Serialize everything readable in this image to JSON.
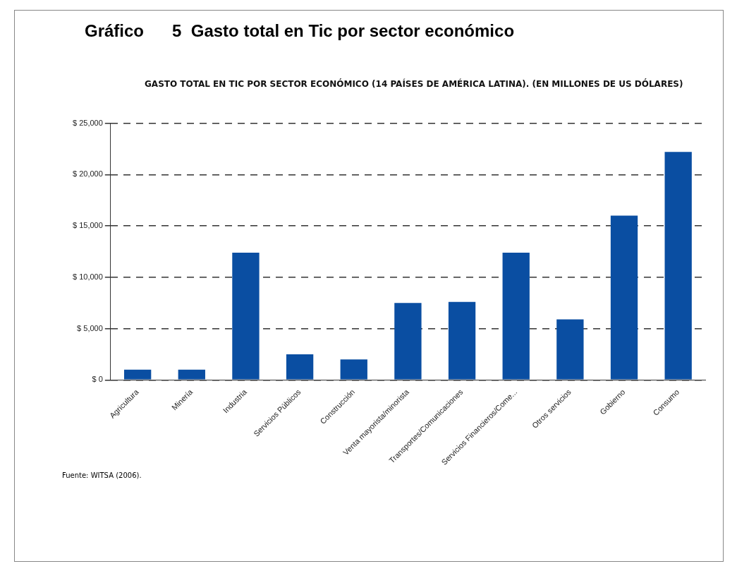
{
  "chart_data": {
    "type": "bar",
    "title": "Gráfico      5  Gasto total en Tic por sector económico",
    "subtitle": "GASTO TOTAL EN TIC POR SECTOR ECONÓMICO (14 PAÍSES DE AMÉRICA LATINA). (EN MILLONES DE US DÓLARES)",
    "categories": [
      "Agricultura",
      "Minería",
      "Industria",
      "Servicios Públicos",
      "Construcción",
      "Venta mayorista/minorista",
      "Transportes/Comunicaciones",
      "Servicios Financieros/Come...",
      "Otros servicios",
      "Gobierno",
      "Consumo"
    ],
    "values": [
      1000,
      1000,
      12400,
      2500,
      2000,
      7500,
      7600,
      12400,
      5900,
      16000,
      22200
    ],
    "color": "#0a4ea2",
    "ylim": [
      0,
      25000
    ],
    "yticks": [
      {
        "value": 0,
        "label": "$ 0"
      },
      {
        "value": 5000,
        "label": "$ 5,000"
      },
      {
        "value": 10000,
        "label": "$ 10,000"
      },
      {
        "value": 15000,
        "label": "$ 15,000"
      },
      {
        "value": 20000,
        "label": "$ 20,000"
      },
      {
        "value": 25000,
        "label": "$ 25,000"
      }
    ],
    "grid": "y",
    "line_style": "dashed",
    "legend": false,
    "annotations": [
      "Fuente: WITSA (2006)."
    ]
  }
}
